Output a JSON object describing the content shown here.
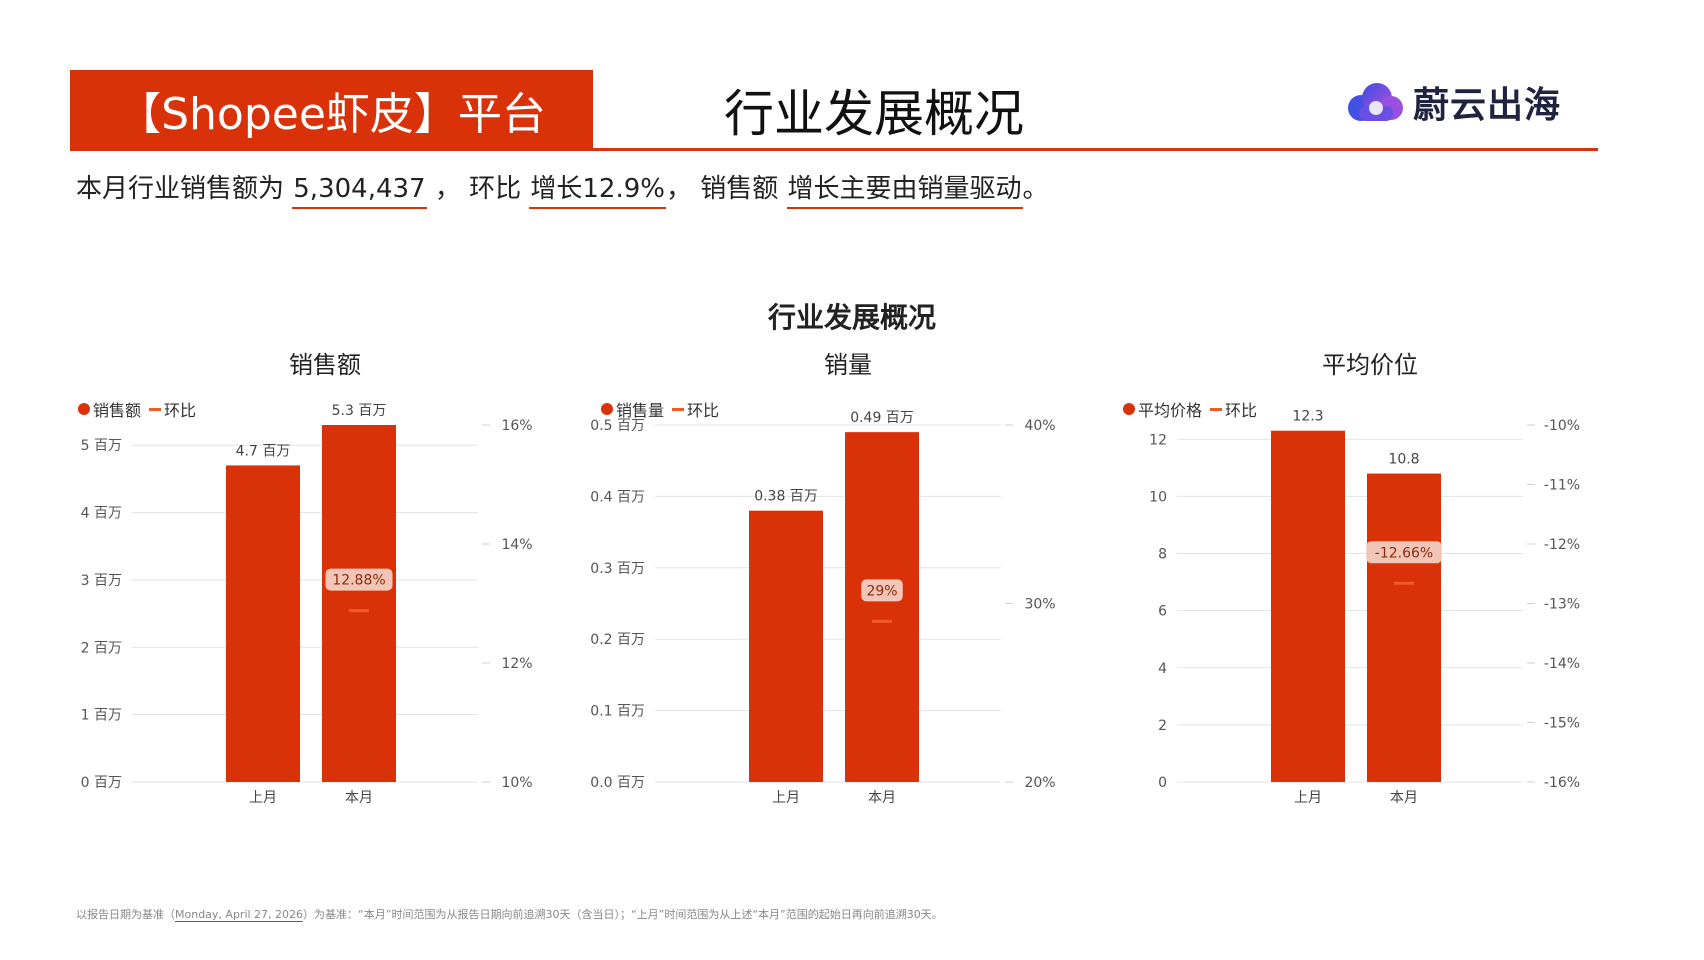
{
  "header": {
    "platform_label": "【Shopee虾皮】平台",
    "page_title": "行业发展概况",
    "logo_text": "蔚云出海"
  },
  "summary": {
    "prefix": "本月行业销售额为 ",
    "sales_value": "5,304,437",
    "mid1": " ， 环比 ",
    "growth_text": "增长12.9%",
    "mid2": "， 销售额 ",
    "driver_text": "增长主要由销量驱动",
    "suffix": "。"
  },
  "charts_title": "行业发展概况",
  "footnote": {
    "prefix": "以报告日期为基准（",
    "date": "Monday, April 27, 2026",
    "suffix": "）为基准：“本月”时间范围为从报告日期向前追溯30天（含当日）；“上月”时间范围为从上述“本月”范围的起始日再向前追溯30天。"
  },
  "colors": {
    "bar": "#d93208",
    "line": "#f05a28",
    "brand": "#d93208"
  },
  "chart_data": [
    {
      "type": "bar",
      "title": "销售额",
      "legend": [
        "销售额",
        "环比"
      ],
      "categories": [
        "上月",
        "本月"
      ],
      "series": [
        {
          "name": "销售额",
          "values": [
            4.7,
            5.3
          ],
          "labels": [
            "4.7 百万",
            "5.3 百万"
          ],
          "axis": "left"
        },
        {
          "name": "环比",
          "values": [
            null,
            12.88
          ],
          "labels": [
            "",
            "12.88%"
          ],
          "axis": "right",
          "kind": "line"
        }
      ],
      "ylim": [
        0,
        5.3
      ],
      "yticks": [
        0,
        1,
        2,
        3,
        4,
        5
      ],
      "ytick_labels": [
        "0 百万",
        "1 百万",
        "2 百万",
        "3 百万",
        "4 百万",
        "5 百万"
      ],
      "y2lim": [
        10,
        16
      ],
      "y2ticks": [
        10,
        12,
        14,
        16
      ],
      "y2tick_labels": [
        "10%",
        "12%",
        "14%",
        "16%"
      ],
      "grid": true
    },
    {
      "type": "bar",
      "title": "销量",
      "legend": [
        "销售量",
        "环比"
      ],
      "categories": [
        "上月",
        "本月"
      ],
      "series": [
        {
          "name": "销售量",
          "values": [
            0.38,
            0.49
          ],
          "labels": [
            "0.38 百万",
            "0.49 百万"
          ],
          "axis": "left"
        },
        {
          "name": "环比",
          "values": [
            null,
            29
          ],
          "labels": [
            "",
            "29%"
          ],
          "axis": "right",
          "kind": "line"
        }
      ],
      "ylim": [
        0,
        0.5
      ],
      "yticks": [
        0,
        0.1,
        0.2,
        0.3,
        0.4,
        0.5
      ],
      "ytick_labels": [
        "0.0 百万",
        "0.1 百万",
        "0.2 百万",
        "0.3 百万",
        "0.4 百万",
        "0.5 百万"
      ],
      "y2lim": [
        20,
        40
      ],
      "y2ticks": [
        20,
        30,
        40
      ],
      "y2tick_labels": [
        "20%",
        "30%",
        "40%"
      ],
      "grid": true
    },
    {
      "type": "bar",
      "title": "平均价位",
      "legend": [
        "平均价格",
        "环比"
      ],
      "categories": [
        "上月",
        "本月"
      ],
      "series": [
        {
          "name": "平均价格",
          "values": [
            12.3,
            10.8
          ],
          "labels": [
            "12.3",
            "10.8"
          ],
          "axis": "left"
        },
        {
          "name": "环比",
          "values": [
            null,
            -12.66
          ],
          "labels": [
            "",
            "-12.66%"
          ],
          "axis": "right",
          "kind": "line"
        }
      ],
      "ylim": [
        0,
        12.5
      ],
      "yticks": [
        0,
        2,
        4,
        6,
        8,
        10,
        12
      ],
      "ytick_labels": [
        "0",
        "2",
        "4",
        "6",
        "8",
        "10",
        "12"
      ],
      "y2lim": [
        -16,
        -10
      ],
      "y2ticks": [
        -16,
        -15,
        -14,
        -13,
        -12,
        -11,
        -10
      ],
      "y2tick_labels": [
        "-16%",
        "-15%",
        "-14%",
        "-13%",
        "-12%",
        "-11%",
        "-10%"
      ],
      "grid": true
    }
  ]
}
